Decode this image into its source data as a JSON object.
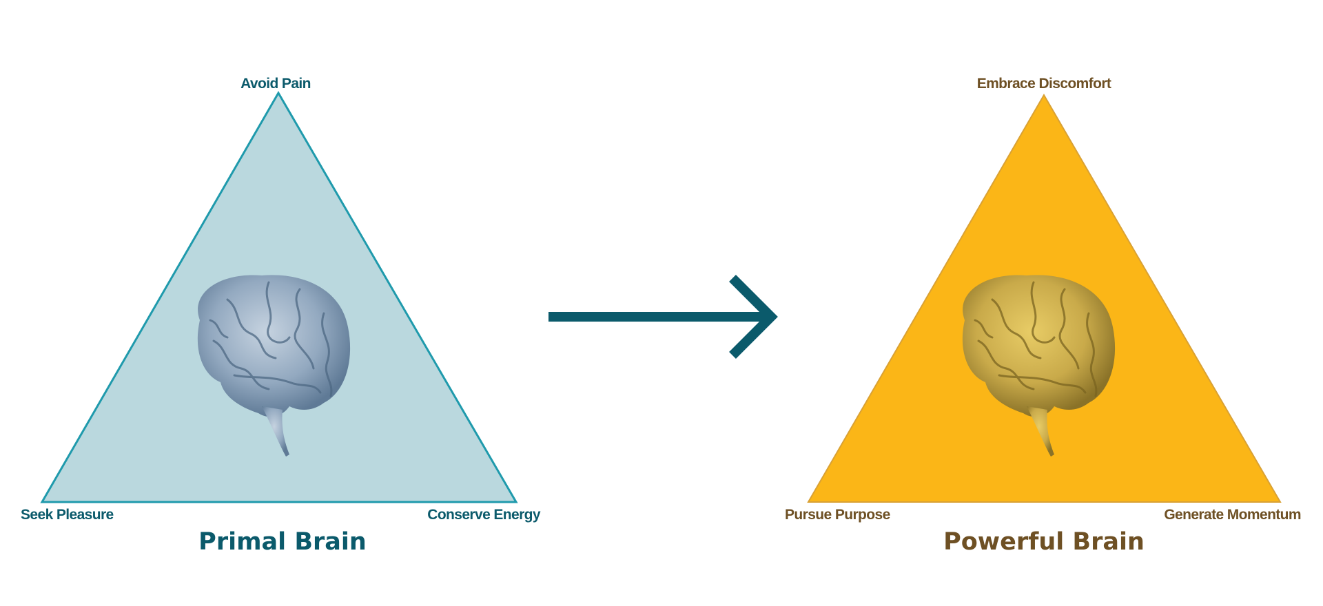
{
  "colors": {
    "primal_fill": "#bad8de",
    "primal_stroke": "#1f9aac",
    "primal_text": "#0b5a6b",
    "powerful_fill": "#fbb617",
    "powerful_stroke": "#d9a134",
    "powerful_text": "#6e5024",
    "arrow": "#0b5a6b"
  },
  "primal": {
    "title": "Primal Brain",
    "top": "Avoid Pain",
    "bottom_left": "Seek Pleasure",
    "bottom_right": "Conserve Energy",
    "icon": "brain-icon"
  },
  "powerful": {
    "title": "Powerful Brain",
    "top": "Embrace Discomfort",
    "bottom_left": "Pursue Purpose",
    "bottom_right": "Generate Momentum",
    "icon": "brain-icon"
  },
  "arrow_icon": "arrow-right-icon"
}
